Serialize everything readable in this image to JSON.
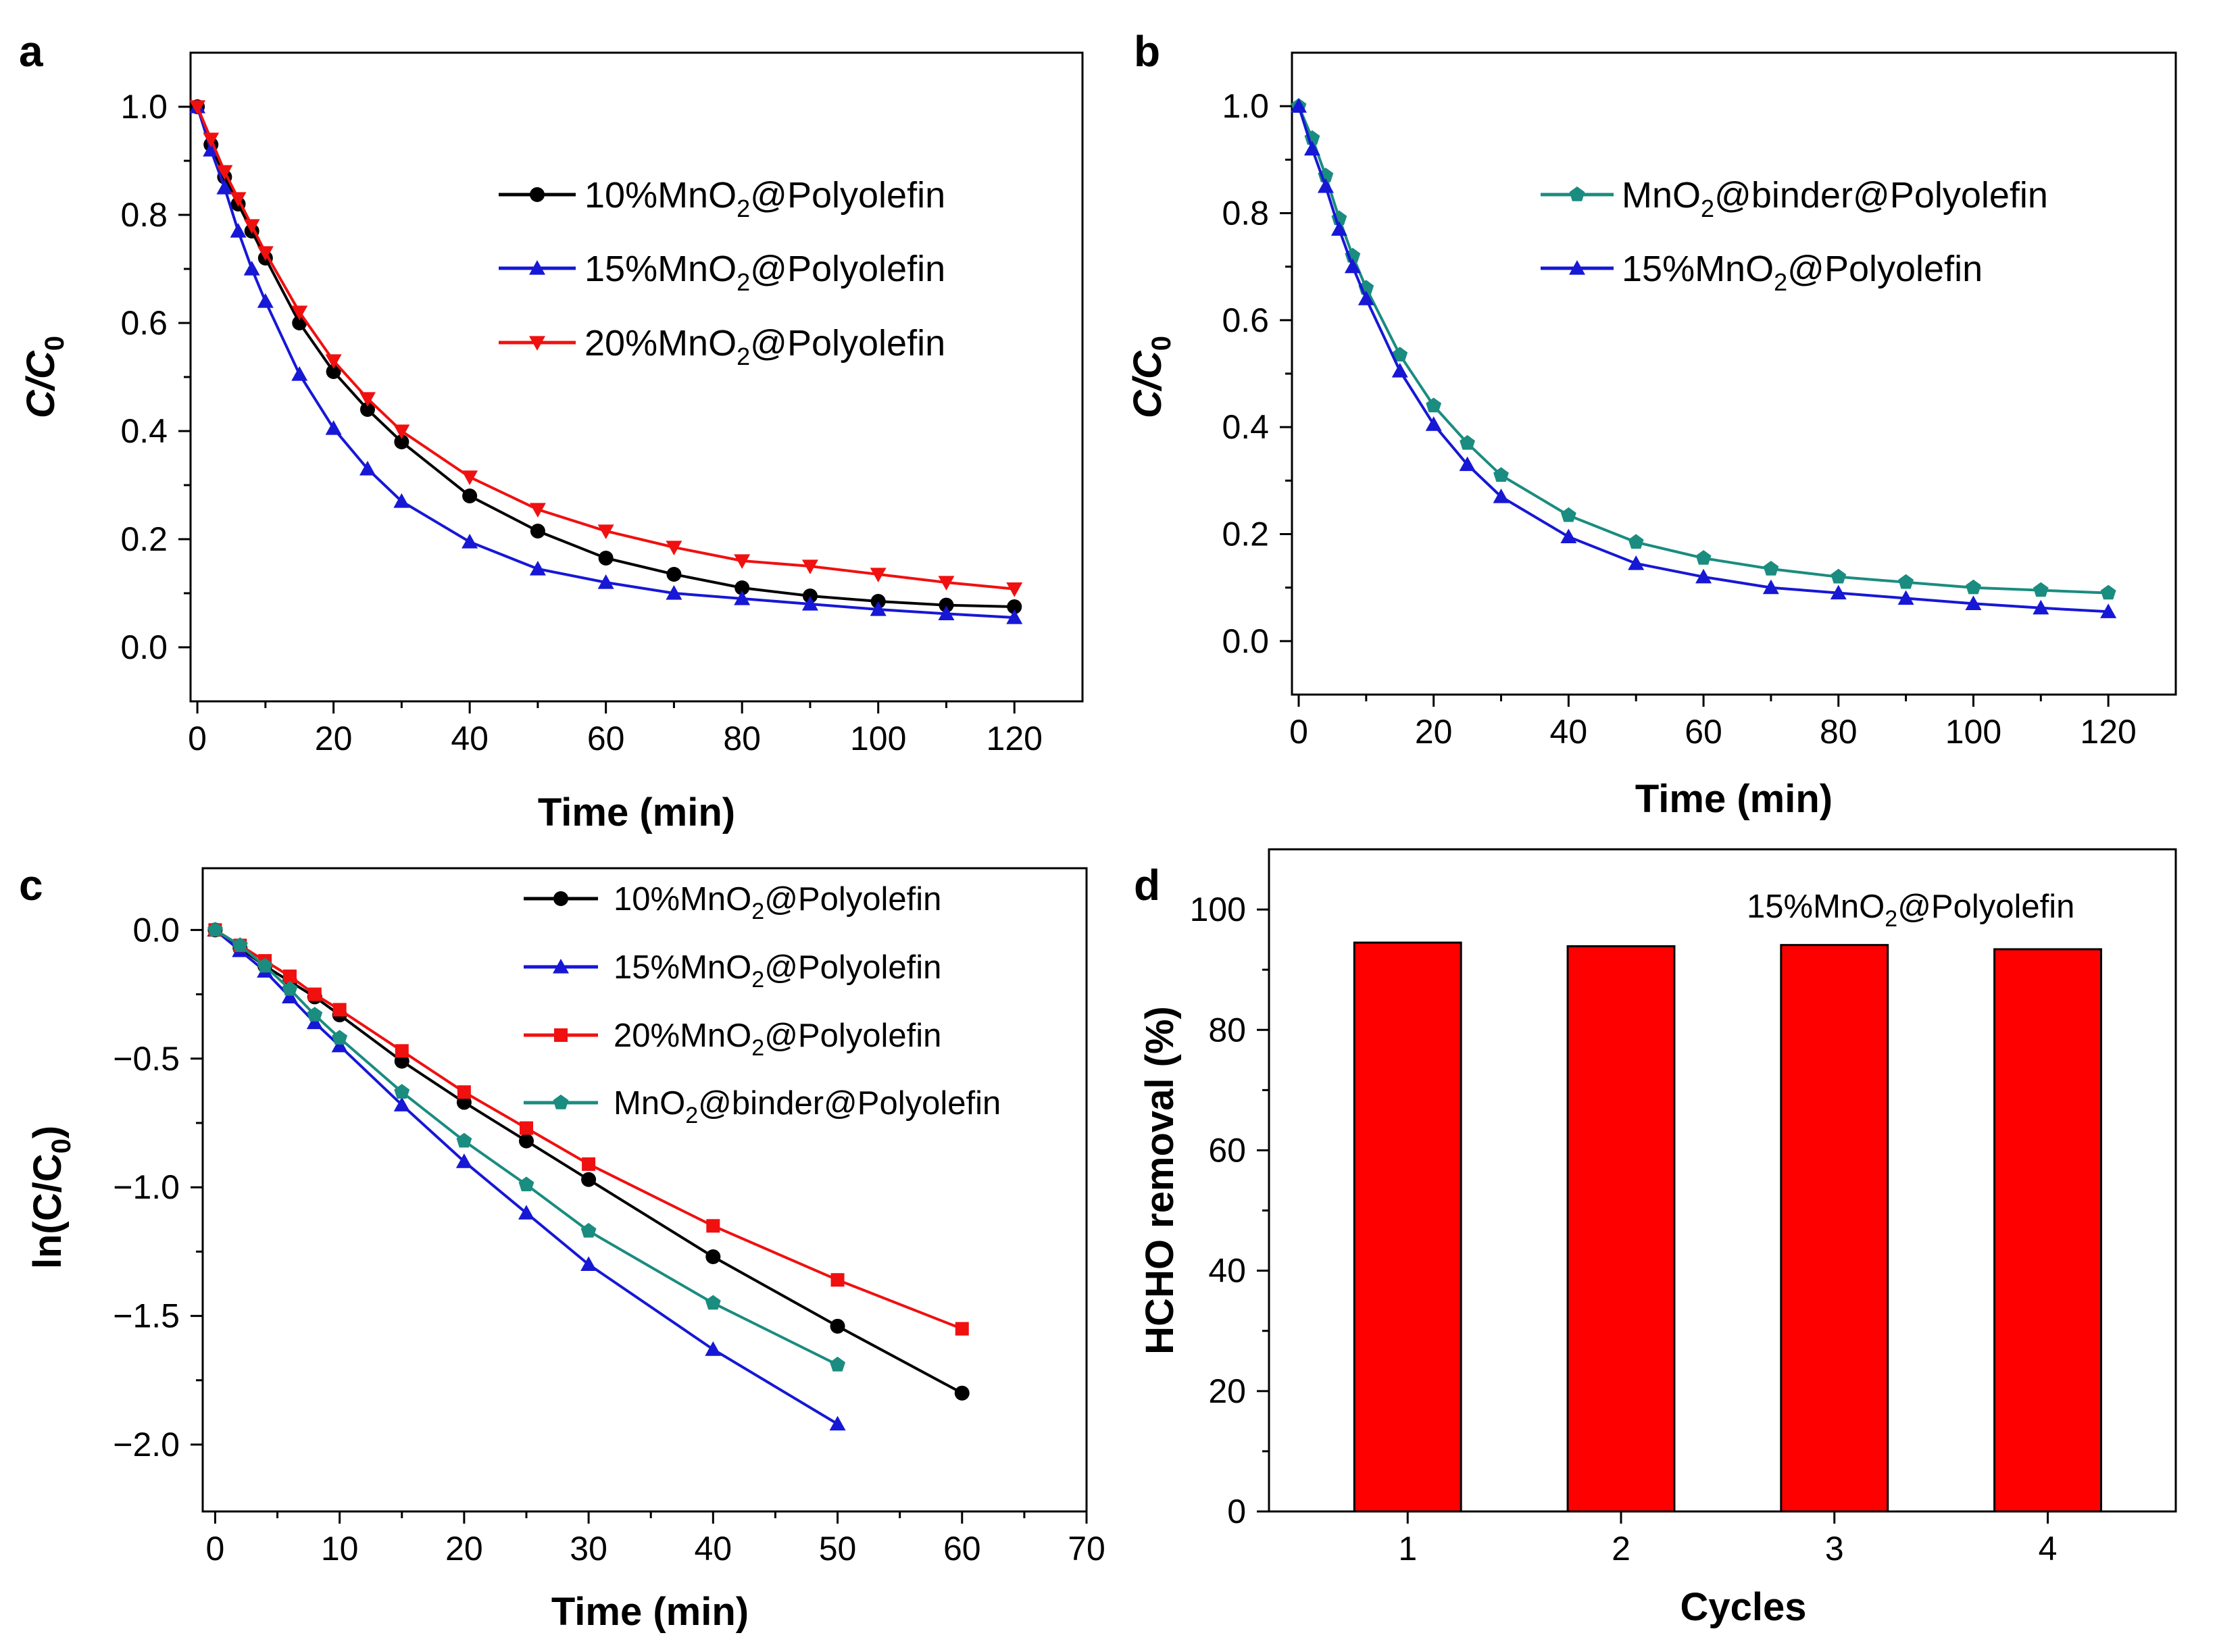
{
  "figure": {
    "colors": {
      "black": "#000000",
      "blue": "#1717d6",
      "red": "#f01010",
      "teal": "#1a8c80",
      "bar_fill": "#ff0000"
    }
  },
  "chart_data": [
    {
      "panel": "a",
      "type": "line",
      "xlabel": "Time (min)",
      "ylabel": "C/C0",
      "ylabel_main": "C/C",
      "ylabel_sub": "0",
      "xlim": [
        -1,
        130
      ],
      "ylim": [
        -0.1,
        1.1
      ],
      "xticks": [
        0,
        20,
        40,
        60,
        80,
        100,
        120
      ],
      "xtick_labels": [
        "0",
        "20",
        "40",
        "60",
        "80",
        "100",
        "120"
      ],
      "yticks": [
        0.0,
        0.2,
        0.4,
        0.6,
        0.8,
        1.0
      ],
      "ytick_labels": [
        "0.0",
        "0.2",
        "0.4",
        "0.6",
        "0.8",
        "1.0"
      ],
      "x": [
        0,
        2,
        4,
        6,
        8,
        10,
        15,
        20,
        25,
        30,
        40,
        50,
        60,
        70,
        80,
        90,
        100,
        110,
        120
      ],
      "legend_position": "top-right",
      "series": [
        {
          "name": "10%MnO2@Polyolefin",
          "label_pre": "10%MnO",
          "label_sub": "2",
          "label_post": "@Polyolefin",
          "color": "#000000",
          "marker": "circle",
          "values": [
            1.0,
            0.93,
            0.87,
            0.82,
            0.77,
            0.72,
            0.6,
            0.51,
            0.44,
            0.38,
            0.28,
            0.215,
            0.165,
            0.135,
            0.11,
            0.095,
            0.085,
            0.078,
            0.075
          ]
        },
        {
          "name": "15%MnO2@Polyolefin",
          "label_pre": "15%MnO",
          "label_sub": "2",
          "label_post": "@Polyolefin",
          "color": "#1717d6",
          "marker": "triangle-up",
          "values": [
            1.0,
            0.92,
            0.85,
            0.77,
            0.7,
            0.64,
            0.505,
            0.405,
            0.33,
            0.27,
            0.195,
            0.145,
            0.12,
            0.1,
            0.09,
            0.08,
            0.07,
            0.062,
            0.055
          ]
        },
        {
          "name": "20%MnO2@Polyolefin",
          "label_pre": "20%MnO",
          "label_sub": "2",
          "label_post": "@Polyolefin",
          "color": "#f01010",
          "marker": "triangle-down",
          "values": [
            1.0,
            0.94,
            0.88,
            0.83,
            0.78,
            0.73,
            0.62,
            0.53,
            0.46,
            0.4,
            0.315,
            0.255,
            0.215,
            0.185,
            0.16,
            0.15,
            0.135,
            0.12,
            0.108
          ]
        }
      ]
    },
    {
      "panel": "b",
      "type": "line",
      "xlabel": "Time (min)",
      "ylabel": "C/C0",
      "ylabel_main": "C/C",
      "ylabel_sub": "0",
      "xlim": [
        -1,
        130
      ],
      "ylim": [
        -0.1,
        1.1
      ],
      "xticks": [
        0,
        20,
        40,
        60,
        80,
        100,
        120
      ],
      "xtick_labels": [
        "0",
        "20",
        "40",
        "60",
        "80",
        "100",
        "120"
      ],
      "yticks": [
        0.0,
        0.2,
        0.4,
        0.6,
        0.8,
        1.0
      ],
      "ytick_labels": [
        "0.0",
        "0.2",
        "0.4",
        "0.6",
        "0.8",
        "1.0"
      ],
      "x": [
        0,
        2,
        4,
        6,
        8,
        10,
        15,
        20,
        25,
        30,
        40,
        50,
        60,
        70,
        80,
        90,
        100,
        110,
        120
      ],
      "legend_position": "top-right",
      "series": [
        {
          "name": "MnO2@binder@Polyolefin",
          "label_pre": "MnO",
          "label_sub": "2",
          "label_post": "@binder@Polyolefin",
          "color": "#1a8c80",
          "marker": "pentagon",
          "values": [
            1.0,
            0.94,
            0.87,
            0.79,
            0.72,
            0.66,
            0.535,
            0.44,
            0.37,
            0.31,
            0.235,
            0.185,
            0.155,
            0.135,
            0.12,
            0.11,
            0.1,
            0.095,
            0.09
          ]
        },
        {
          "name": "15%MnO2@Polyolefin",
          "label_pre": "15%MnO",
          "label_sub": "2",
          "label_post": "@Polyolefin",
          "color": "#1717d6",
          "marker": "triangle-up",
          "values": [
            1.0,
            0.92,
            0.85,
            0.77,
            0.7,
            0.64,
            0.505,
            0.405,
            0.33,
            0.27,
            0.195,
            0.145,
            0.12,
            0.1,
            0.09,
            0.08,
            0.07,
            0.062,
            0.055
          ]
        }
      ]
    },
    {
      "panel": "c",
      "type": "line",
      "xlabel": "Time (min)",
      "ylabel": "ln(C/C0)",
      "ylabel_main": "ln(C/C",
      "ylabel_sub": "0",
      "ylabel_close": ")",
      "xlim": [
        -1,
        70
      ],
      "ylim": [
        -2.26,
        0.24
      ],
      "xticks": [
        0,
        10,
        20,
        30,
        40,
        50,
        60,
        70
      ],
      "xtick_labels": [
        "0",
        "10",
        "20",
        "30",
        "40",
        "50",
        "60",
        "70"
      ],
      "yticks": [
        0.0,
        -0.5,
        -1.0,
        -1.5,
        -2.0
      ],
      "ytick_labels": [
        "0.0",
        "−0.5",
        "−1.0",
        "−1.5",
        "−2.0"
      ],
      "legend_position": "top-right",
      "series": [
        {
          "name": "10%MnO2@Polyolefin",
          "label_pre": "10%MnO",
          "label_sub": "2",
          "label_post": "@Polyolefin",
          "color": "#000000",
          "marker": "circle",
          "x": [
            0,
            2,
            4,
            6,
            8,
            10,
            15,
            20,
            25,
            30,
            40,
            50,
            60
          ],
          "values": [
            0,
            -0.07,
            -0.14,
            -0.2,
            -0.26,
            -0.33,
            -0.51,
            -0.67,
            -0.82,
            -0.97,
            -1.27,
            -1.54,
            -1.8
          ]
        },
        {
          "name": "15%MnO2@Polyolefin",
          "label_pre": "15%MnO",
          "label_sub": "2",
          "label_post": "@Polyolefin",
          "color": "#1717d6",
          "marker": "triangle-up",
          "x": [
            0,
            2,
            4,
            6,
            8,
            10,
            15,
            20,
            25,
            30,
            40,
            50
          ],
          "values": [
            0,
            -0.08,
            -0.16,
            -0.26,
            -0.36,
            -0.45,
            -0.68,
            -0.9,
            -1.1,
            -1.3,
            -1.63,
            -1.92
          ]
        },
        {
          "name": "20%MnO2@Polyolefin",
          "label_pre": "20%MnO",
          "label_sub": "2",
          "label_post": "@Polyolefin",
          "color": "#f01010",
          "marker": "square",
          "x": [
            0,
            2,
            4,
            6,
            8,
            10,
            15,
            20,
            25,
            30,
            40,
            50,
            60
          ],
          "values": [
            0,
            -0.06,
            -0.12,
            -0.18,
            -0.25,
            -0.31,
            -0.47,
            -0.63,
            -0.77,
            -0.91,
            -1.15,
            -1.36,
            -1.55
          ]
        },
        {
          "name": "MnO2@binder@Polyolefin",
          "label_pre": "MnO",
          "label_sub": "2",
          "label_post": "@binder@Polyolefin",
          "color": "#1a8c80",
          "marker": "pentagon",
          "x": [
            0,
            2,
            4,
            6,
            8,
            10,
            15,
            20,
            25,
            30,
            40,
            50
          ],
          "values": [
            0,
            -0.06,
            -0.14,
            -0.23,
            -0.33,
            -0.42,
            -0.63,
            -0.82,
            -0.99,
            -1.17,
            -1.45,
            -1.69
          ]
        }
      ]
    },
    {
      "panel": "d",
      "type": "bar",
      "xlabel": "Cycles",
      "ylabel": "HCHO removal (%)",
      "categories": [
        "1",
        "2",
        "3",
        "4"
      ],
      "values": [
        94.5,
        93.9,
        94.1,
        93.4
      ],
      "ylim": [
        0,
        110
      ],
      "yticks": [
        0,
        20,
        40,
        60,
        80,
        100
      ],
      "ytick_labels": [
        "0",
        "20",
        "40",
        "60",
        "80",
        "100"
      ],
      "annotation": {
        "pre": "15%MnO",
        "sub": "2",
        "post": "@Polyolefin"
      },
      "bar_color": "#ff0000"
    }
  ]
}
